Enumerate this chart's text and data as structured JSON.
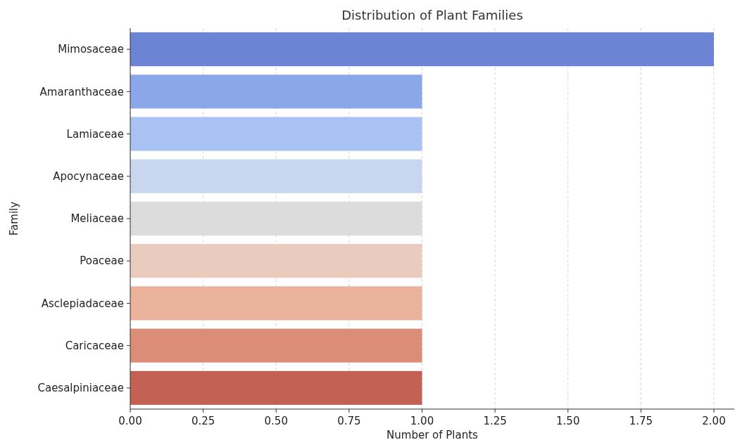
{
  "chart_data": {
    "type": "bar",
    "orientation": "horizontal",
    "title": "Distribution of Plant Families",
    "xlabel": "Number of Plants",
    "ylabel": "Family",
    "categories": [
      "Mimosaceae",
      "Amaranthaceae",
      "Lamiaceae",
      "Apocynaceae",
      "Meliaceae",
      "Poaceae",
      "Asclepiadaceae",
      "Caricaceae",
      "Caesalpiniaceae"
    ],
    "values": [
      2,
      1,
      1,
      1,
      1,
      1,
      1,
      1,
      1
    ],
    "colors": [
      "#6b84d4",
      "#8ba7ea",
      "#aac2f3",
      "#c8d6ef",
      "#dcdcdc",
      "#e9ccbd",
      "#eab29a",
      "#dc8d77",
      "#c46155"
    ],
    "xlim": [
      0,
      2.07
    ],
    "xticks": [
      {
        "value": 0,
        "label": "0.00"
      },
      {
        "value": 0.25,
        "label": "0.25"
      },
      {
        "value": 0.5,
        "label": "0.50"
      },
      {
        "value": 0.75,
        "label": "0.75"
      },
      {
        "value": 1,
        "label": "1.00"
      },
      {
        "value": 1.25,
        "label": "1.25"
      },
      {
        "value": 1.5,
        "label": "1.50"
      },
      {
        "value": 1.75,
        "label": "1.75"
      },
      {
        "value": 2,
        "label": "2.00"
      }
    ],
    "grid": "x"
  }
}
